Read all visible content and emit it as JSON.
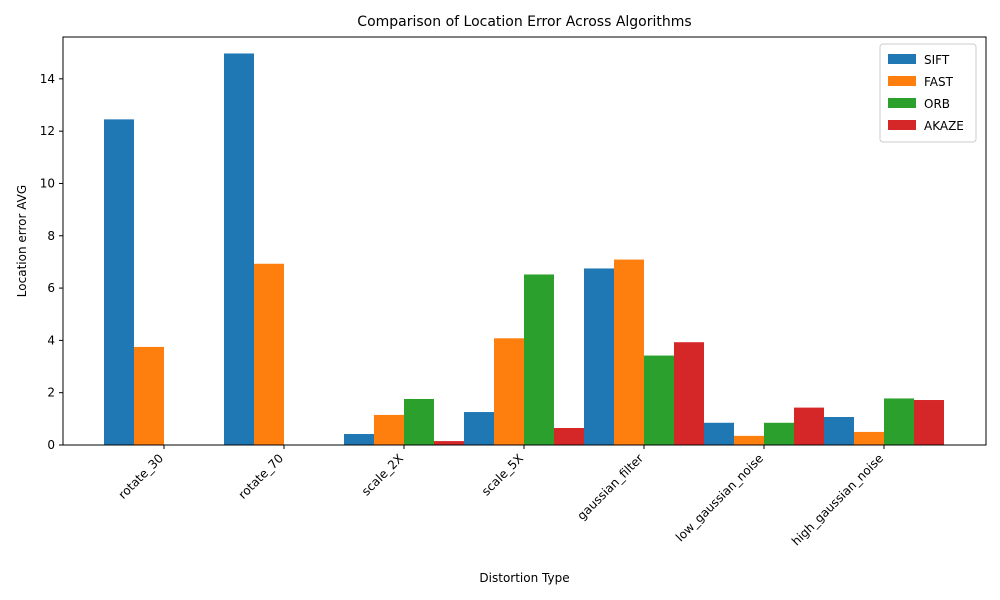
{
  "chart_data": {
    "type": "bar",
    "title": "Comparison of Location Error Across Algorithms",
    "xlabel": "Distortion Type",
    "ylabel": "Location error AVG",
    "ylim": [
      0,
      15.6
    ],
    "yticks": [
      0,
      2,
      4,
      6,
      8,
      10,
      12,
      14
    ],
    "grid": false,
    "legend_position": "top-right",
    "categories": [
      "rotate_30",
      "rotate_70",
      "scale_2X",
      "scale_5X",
      "gaussian_filter",
      "low_gaussian_noise",
      "high_gaussian_noise"
    ],
    "series": [
      {
        "name": "SIFT",
        "color": "#1f77b4",
        "values": [
          12.45,
          14.97,
          0.42,
          1.26,
          6.75,
          0.85,
          1.07
        ]
      },
      {
        "name": "FAST",
        "color": "#ff7f0e",
        "values": [
          3.75,
          6.93,
          1.15,
          4.08,
          7.09,
          0.35,
          0.5
        ]
      },
      {
        "name": "ORB",
        "color": "#2ca02c",
        "values": [
          0,
          0,
          1.76,
          6.52,
          3.42,
          0.85,
          1.78
        ]
      },
      {
        "name": "AKAZE",
        "color": "#d62728",
        "values": [
          0,
          0,
          0.15,
          0.65,
          3.93,
          1.43,
          1.72
        ]
      }
    ]
  }
}
